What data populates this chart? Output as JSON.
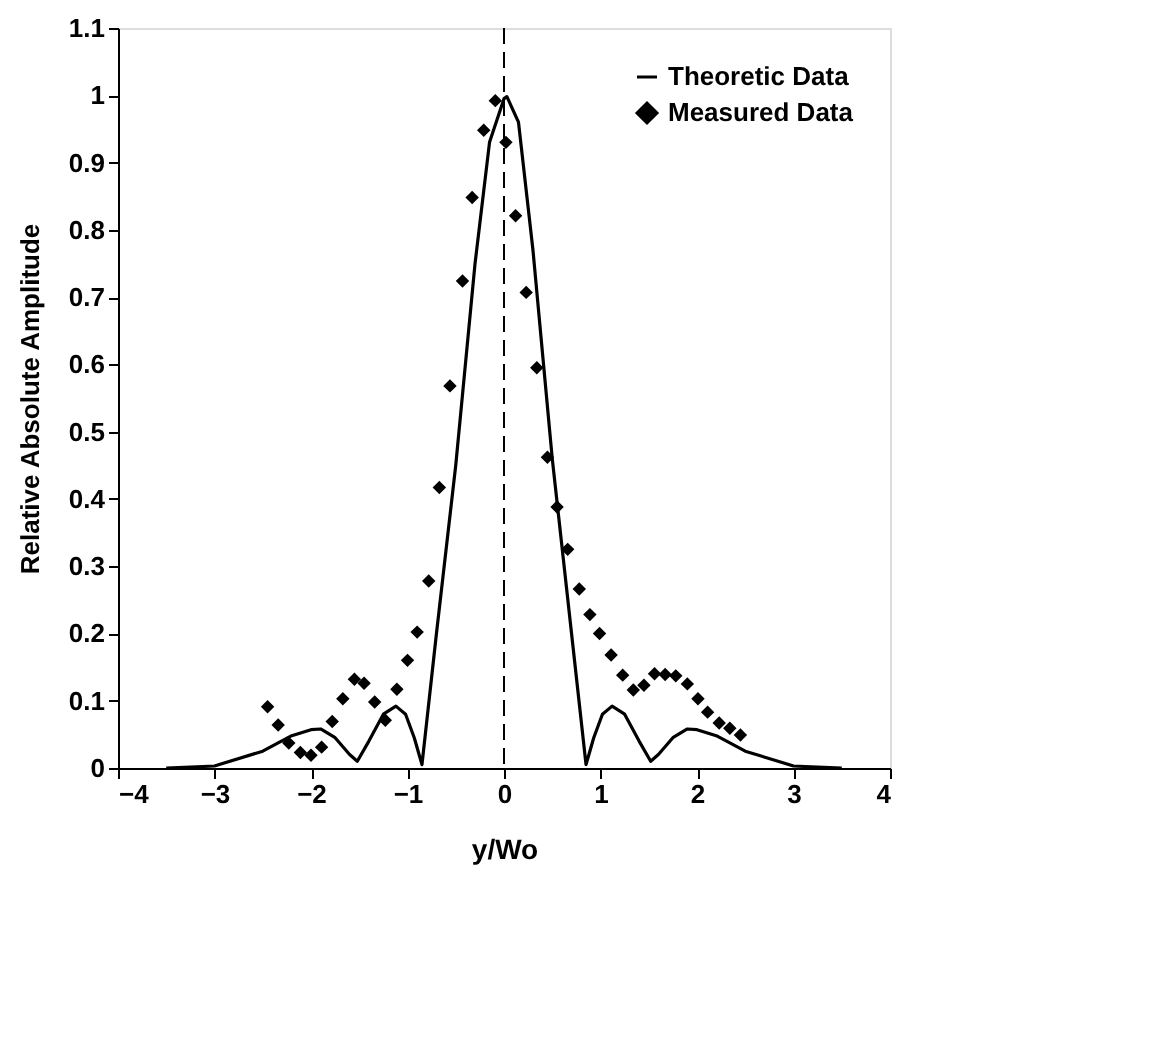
{
  "chart_data": {
    "type": "line",
    "xlabel": "y/Wo",
    "ylabel": "Relative Absolute Amplitude",
    "xlim": [
      -4,
      4
    ],
    "ylim": [
      0,
      1.1
    ],
    "xticks": [
      -4,
      -3,
      -2,
      -1,
      0,
      1,
      2,
      3,
      4
    ],
    "yticks": [
      0,
      0.1,
      0.2,
      0.3,
      0.4,
      0.5,
      0.6,
      0.7,
      0.8,
      0.9,
      1,
      1.1
    ],
    "grid": false,
    "legend": "top right",
    "ref_lines": [
      {
        "axis": "x",
        "value": 0,
        "line_style": "dashed",
        "color": "#000000"
      }
    ],
    "series": [
      {
        "name": "Theoretic Data",
        "type": "line",
        "color": "#000000",
        "marker": "none",
        "line_style": "solid",
        "x": [
          -3.5,
          -3.0,
          -2.5,
          -2.2,
          -2.0,
          -1.9,
          -1.75,
          -1.6,
          -1.52,
          -1.4,
          -1.25,
          -1.12,
          -1.02,
          -0.93,
          -0.85,
          -0.7,
          -0.5,
          -0.3,
          -0.15,
          0.0,
          0.03,
          0.15,
          0.3,
          0.5,
          0.7,
          0.85,
          0.93,
          1.02,
          1.12,
          1.25,
          1.4,
          1.52,
          1.6,
          1.75,
          1.9,
          2.0,
          2.2,
          2.5,
          3.0,
          3.5
        ],
        "values": [
          0,
          0.003,
          0.025,
          0.048,
          0.057,
          0.058,
          0.045,
          0.02,
          0.01,
          0.04,
          0.08,
          0.092,
          0.08,
          0.045,
          0.005,
          0.2,
          0.45,
          0.75,
          0.93,
          0.995,
          0.998,
          0.96,
          0.77,
          0.46,
          0.2,
          0.005,
          0.045,
          0.08,
          0.092,
          0.08,
          0.04,
          0.01,
          0.02,
          0.045,
          0.058,
          0.057,
          0.048,
          0.025,
          0.003,
          0
        ]
      },
      {
        "name": "Measured Data",
        "type": "scatter",
        "color": "#000000",
        "marker": "diamond",
        "x": [
          -2.45,
          -2.34,
          -2.23,
          -2.11,
          -2.0,
          -1.89,
          -1.78,
          -1.67,
          -1.55,
          -1.45,
          -1.34,
          -1.23,
          -1.11,
          -1.0,
          -0.9,
          -0.78,
          -0.67,
          -0.56,
          -0.43,
          -0.33,
          -0.21,
          -0.09,
          0.02,
          0.12,
          0.23,
          0.34,
          0.45,
          0.55,
          0.66,
          0.78,
          0.89,
          0.99,
          1.11,
          1.23,
          1.34,
          1.45,
          1.56,
          1.67,
          1.78,
          1.9,
          2.01,
          2.11,
          2.23,
          2.34,
          2.45
        ],
        "values": [
          0.091,
          0.064,
          0.037,
          0.023,
          0.019,
          0.031,
          0.069,
          0.103,
          0.132,
          0.126,
          0.098,
          0.071,
          0.117,
          0.16,
          0.202,
          0.278,
          0.417,
          0.568,
          0.724,
          0.848,
          0.948,
          0.992,
          0.93,
          0.821,
          0.707,
          0.595,
          0.462,
          0.388,
          0.325,
          0.266,
          0.228,
          0.2,
          0.168,
          0.138,
          0.116,
          0.123,
          0.14,
          0.139,
          0.137,
          0.125,
          0.103,
          0.083,
          0.067,
          0.059,
          0.049
        ]
      }
    ]
  }
}
